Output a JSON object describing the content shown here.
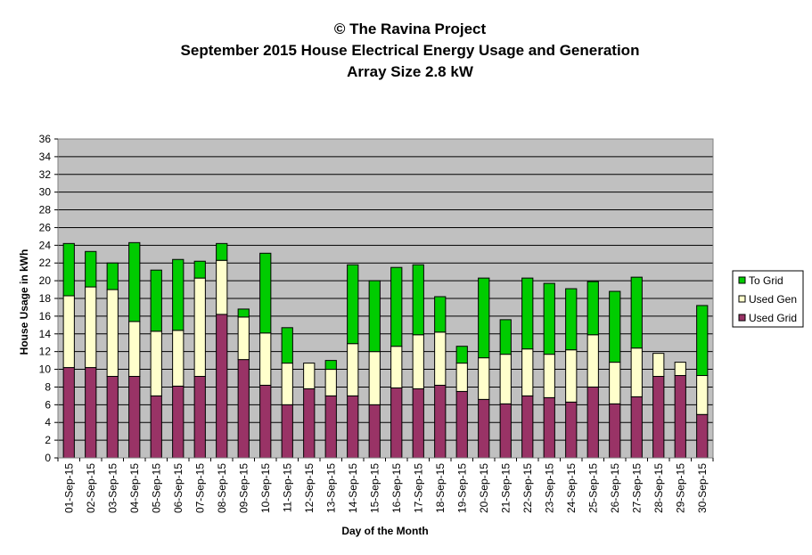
{
  "chart_data": {
    "type": "bar",
    "stacked": true,
    "title_lines": [
      "© The Ravina Project",
      "September 2015 House Electrical Energy Usage and Generation",
      "Array Size 2.8 kW"
    ],
    "xlabel": "Day of the Month",
    "ylabel": "House Usage in kWh",
    "ylim": [
      0,
      36
    ],
    "yticks": [
      0,
      2,
      4,
      6,
      8,
      10,
      12,
      14,
      16,
      18,
      20,
      22,
      24,
      26,
      28,
      30,
      32,
      34,
      36
    ],
    "grid": true,
    "legend_position": "right",
    "categories": [
      "01-Sep-15",
      "02-Sep-15",
      "03-Sep-15",
      "04-Sep-15",
      "05-Sep-15",
      "06-Sep-15",
      "07-Sep-15",
      "08-Sep-15",
      "09-Sep-15",
      "10-Sep-15",
      "11-Sep-15",
      "12-Sep-15",
      "13-Sep-15",
      "14-Sep-15",
      "15-Sep-15",
      "16-Sep-15",
      "17-Sep-15",
      "18-Sep-15",
      "19-Sep-15",
      "20-Sep-15",
      "21-Sep-15",
      "22-Sep-15",
      "23-Sep-15",
      "24-Sep-15",
      "25-Sep-15",
      "26-Sep-15",
      "27-Sep-15",
      "28-Sep-15",
      "29-Sep-15",
      "30-Sep-15"
    ],
    "series": [
      {
        "name": "Used Grid",
        "color": "#993366",
        "values": [
          10.2,
          10.2,
          9.2,
          9.2,
          7.0,
          8.1,
          9.2,
          16.2,
          11.1,
          8.2,
          6.0,
          7.8,
          7.0,
          7.0,
          6.0,
          7.9,
          7.8,
          8.2,
          7.5,
          6.6,
          6.1,
          7.0,
          6.8,
          6.3,
          8.0,
          6.1,
          6.9,
          9.2,
          9.3,
          4.9
        ]
      },
      {
        "name": "Used Gen",
        "color": "#FFFFCC",
        "values": [
          8.1,
          9.1,
          9.8,
          6.2,
          7.3,
          6.3,
          11.1,
          6.1,
          4.8,
          5.9,
          4.7,
          2.9,
          3.0,
          5.9,
          6.0,
          4.7,
          6.1,
          6.0,
          3.2,
          4.7,
          5.6,
          5.3,
          4.9,
          5.9,
          5.9,
          4.7,
          5.5,
          2.6,
          1.5,
          4.4
        ]
      },
      {
        "name": "To Grid",
        "color": "#00CC00",
        "values": [
          5.9,
          4.0,
          3.0,
          8.9,
          6.9,
          8.0,
          1.9,
          1.9,
          0.9,
          9.0,
          4.0,
          0.0,
          1.0,
          8.9,
          8.0,
          8.9,
          7.9,
          4.0,
          1.9,
          9.0,
          3.9,
          8.0,
          8.0,
          6.9,
          6.0,
          8.0,
          8.0,
          0.0,
          0.0,
          7.9
        ]
      }
    ]
  }
}
